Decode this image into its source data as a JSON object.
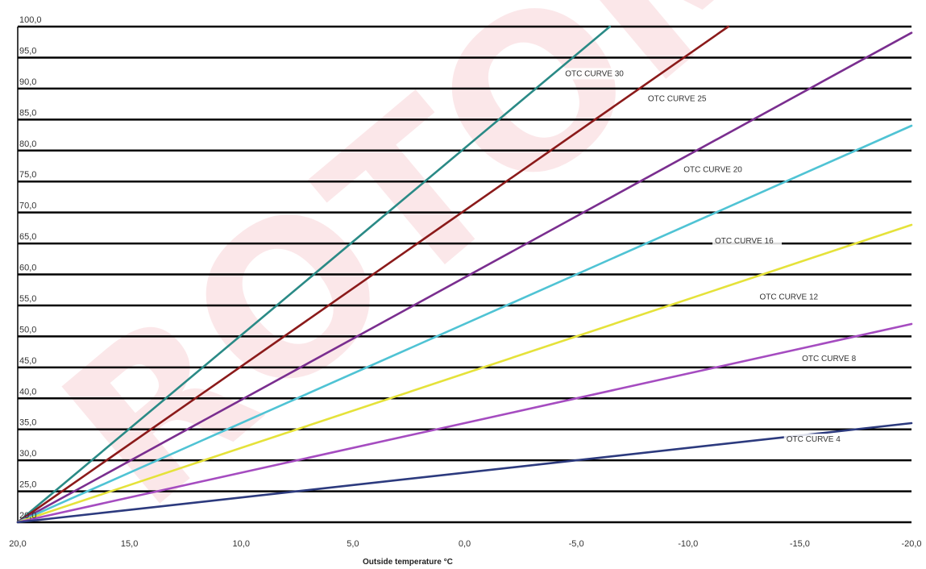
{
  "chart_data": {
    "type": "line",
    "title": "",
    "xlabel": "Outside temperature °C",
    "ylabel": "",
    "xlim": [
      20,
      -20
    ],
    "ylim": [
      20,
      100
    ],
    "grid": true,
    "y_ticks": [
      "20,0",
      "25,0",
      "30,0",
      "35,0",
      "40,0",
      "45,0",
      "50,0",
      "55,0",
      "60,0",
      "65,0",
      "70,0",
      "75,0",
      "80,0",
      "85,0",
      "90,0",
      "95,0",
      "100,0"
    ],
    "x_ticks": [
      {
        "value": 20,
        "label": "20,0"
      },
      {
        "value": 15,
        "label": "15,0"
      },
      {
        "value": 10,
        "label": "10,0"
      },
      {
        "value": 5,
        "label": "5,0"
      },
      {
        "value": 0,
        "label": "0,0"
      },
      {
        "value": -5,
        "label": "-5,0"
      },
      {
        "value": -10,
        "label": "-10,0"
      },
      {
        "value": -15,
        "label": "-15,0"
      },
      {
        "value": -20,
        "label": "-20,0"
      }
    ],
    "series": [
      {
        "name": "OTC CURVE 30",
        "color": "#2a8a86",
        "x": [
          20,
          -6.5
        ],
        "y": [
          20,
          100
        ],
        "label_at": [
          -4.5,
          92
        ]
      },
      {
        "name": "OTC CURVE 25",
        "color": "#8b1a1a",
        "x": [
          20,
          -11.8
        ],
        "y": [
          20,
          100
        ],
        "label_at": [
          -8.2,
          88
        ]
      },
      {
        "name": "OTC CURVE 20",
        "color": "#7a2e8f",
        "x": [
          20,
          -20
        ],
        "y": [
          20,
          99
        ],
        "label_at": [
          -9.8,
          76.5
        ]
      },
      {
        "name": "OTC CURVE 16",
        "color": "#4fc3d4",
        "x": [
          20,
          -20
        ],
        "y": [
          20,
          84
        ],
        "label_at": [
          -11.2,
          65
        ]
      },
      {
        "name": "OTC CURVE 12",
        "color": "#e5e23a",
        "x": [
          20,
          -20
        ],
        "y": [
          20,
          68
        ],
        "label_at": [
          -13.2,
          56
        ]
      },
      {
        "name": "OTC CURVE 8",
        "color": "#a54cc0",
        "x": [
          20,
          -20
        ],
        "y": [
          20,
          52
        ],
        "label_at": [
          -15.1,
          46
        ]
      },
      {
        "name": "OTC CURVE 4",
        "color": "#2c3a7e",
        "x": [
          20,
          -20
        ],
        "y": [
          20,
          36
        ],
        "label_at": [
          -14.4,
          33
        ]
      }
    ]
  }
}
